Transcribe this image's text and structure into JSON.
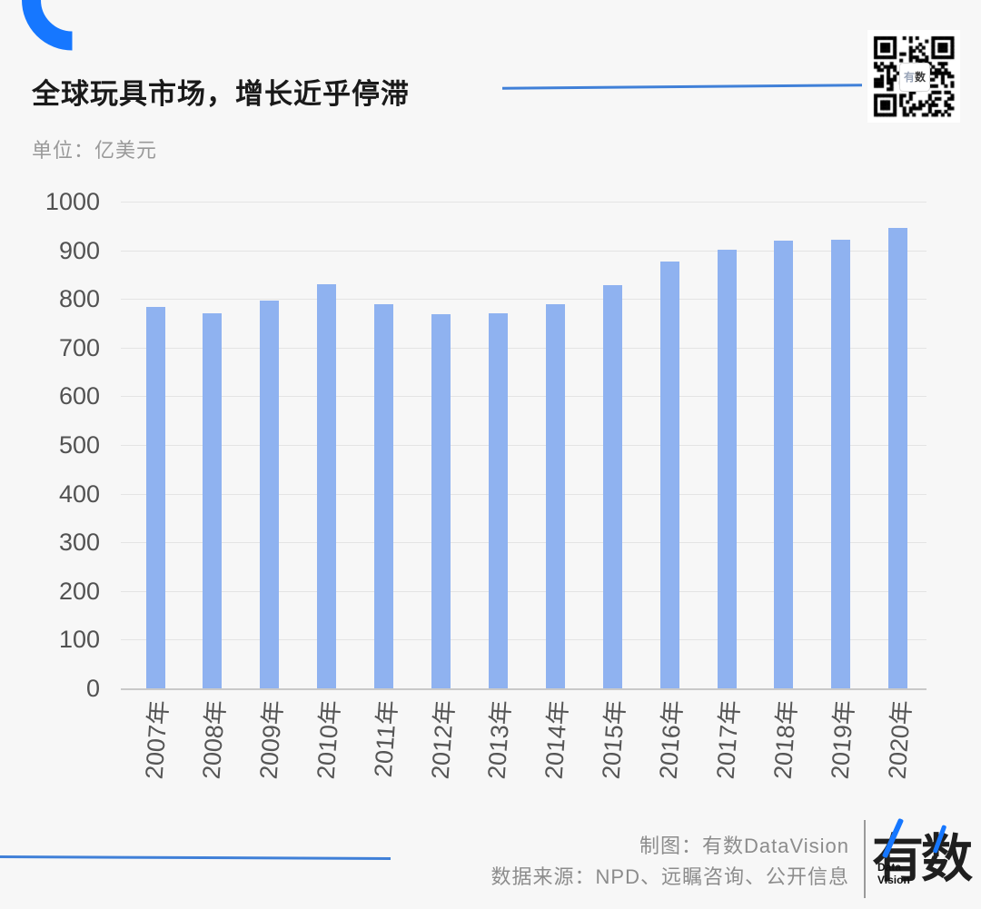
{
  "header": {
    "title": "全球玩具市场，增长近乎停滞",
    "unit_label": "单位：亿美元"
  },
  "qr": {
    "label_you": "有",
    "label_shu": "数"
  },
  "chart_data": {
    "type": "bar",
    "title": "全球玩具市场，增长近乎停滞",
    "ylabel": "亿美元",
    "categories": [
      "2007年",
      "2008年",
      "2009年",
      "2010年",
      "2011年",
      "2012年",
      "2013年",
      "2014年",
      "2015年",
      "2016年",
      "2017年",
      "2018年",
      "2019年",
      "2020年"
    ],
    "values": [
      783,
      771,
      797,
      831,
      789,
      769,
      770,
      790,
      829,
      876,
      902,
      919,
      921,
      946
    ],
    "ylim": [
      0,
      1000
    ],
    "yticks": [
      0,
      100,
      200,
      300,
      400,
      500,
      600,
      700,
      800,
      900,
      1000
    ],
    "grid": true,
    "legend": "none",
    "bar_color": "#8fb2f0",
    "gridline_color": "#e4e4e4"
  },
  "colors": {
    "accent_line": "#4080d8",
    "arc": "#1677ff",
    "background": "#f7f7f7"
  },
  "footer": {
    "credit_line1": "制图：有数DataVision",
    "credit_line2": "数据来源：NPD、远瞩咨询、公开信息",
    "logo_text": "有数",
    "logo_sub1": "Data",
    "logo_sub2": "Vision"
  }
}
